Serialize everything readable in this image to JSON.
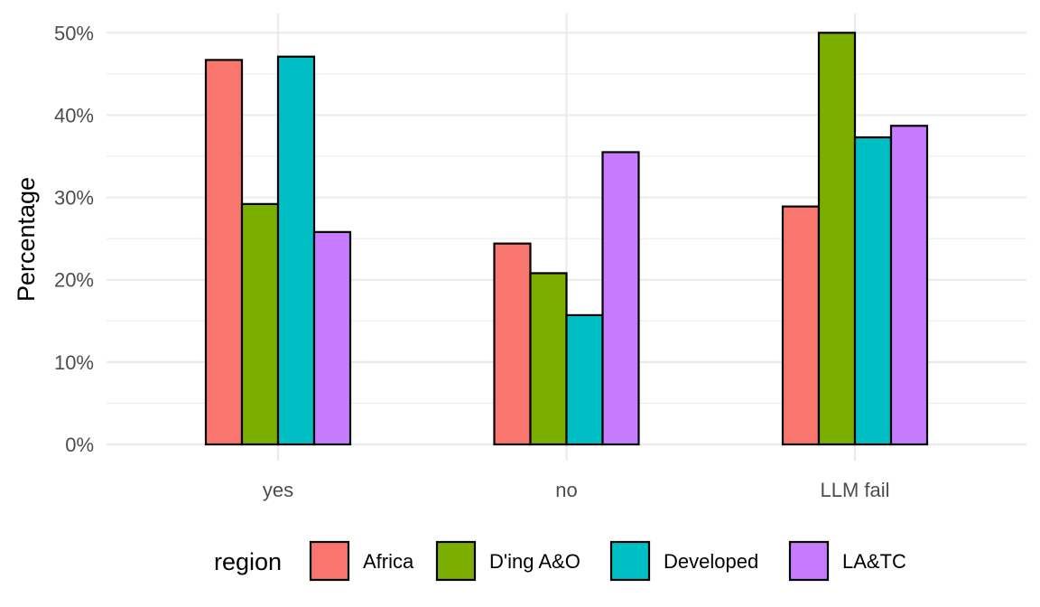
{
  "chart_data": {
    "type": "bar",
    "barmode": "group",
    "title": "",
    "xlabel": "",
    "ylabel": "Percentage",
    "categories": [
      "yes",
      "no",
      "LLM fail"
    ],
    "series": [
      {
        "name": "Africa",
        "color": "#F8766D",
        "values": [
          46.7,
          24.4,
          28.9
        ]
      },
      {
        "name": "D'ing A&O",
        "color": "#7CAE00",
        "values": [
          29.2,
          20.8,
          50.0
        ]
      },
      {
        "name": "Developed",
        "color": "#00BFC4",
        "values": [
          47.1,
          15.7,
          37.3
        ]
      },
      {
        "name": "LA&TC",
        "color": "#C77CFF",
        "values": [
          25.8,
          35.5,
          38.7
        ]
      }
    ],
    "ylim": [
      0,
      52
    ],
    "yticks": [
      0,
      10,
      20,
      30,
      40,
      50
    ],
    "ytick_labels": [
      "0%",
      "10%",
      "20%",
      "30%",
      "40%",
      "50%"
    ],
    "grid": true,
    "legend": {
      "title": "region",
      "position": "bottom"
    }
  }
}
